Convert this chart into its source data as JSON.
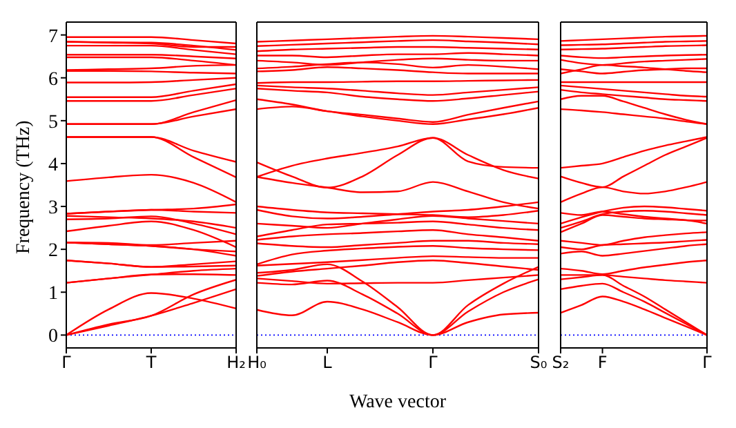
{
  "chart_data": [
    {
      "type": "line",
      "ylabel": "Frequency (THz)",
      "categories": [
        "Γ",
        null,
        "T",
        null,
        "H₂"
      ],
      "ylim": [
        -0.3,
        7.3
      ],
      "yticks": [
        0,
        1,
        2,
        3,
        4,
        5,
        6,
        7
      ],
      "ref_lines": [
        {
          "axis": "y",
          "value": 0,
          "color": "#0000ff",
          "line_style": "dotted"
        }
      ],
      "series": [
        {
          "color": "#ff0000",
          "values": [
            0,
            0.22,
            0.45,
            0.75,
            1.07
          ]
        },
        {
          "color": "#ff0000",
          "values": [
            0,
            0.25,
            0.45,
            0.95,
            1.29
          ]
        },
        {
          "color": "#ff0000",
          "values": [
            0,
            0.6,
            0.98,
            0.85,
            0.62
          ]
        },
        {
          "color": "#ff0000",
          "values": [
            1.22,
            1.32,
            1.41,
            1.42,
            1.4
          ]
        },
        {
          "color": "#ff0000",
          "values": [
            1.22,
            1.32,
            1.41,
            1.5,
            1.55
          ]
        },
        {
          "color": "#ff0000",
          "values": [
            1.74,
            1.67,
            1.59,
            1.6,
            1.62
          ]
        },
        {
          "color": "#ff0000",
          "values": [
            1.74,
            1.67,
            1.59,
            1.65,
            1.72
          ]
        },
        {
          "color": "#ff0000",
          "values": [
            2.16,
            2.12,
            2.08,
            2.0,
            1.85
          ]
        },
        {
          "color": "#ff0000",
          "values": [
            2.16,
            2.12,
            2.08,
            2.0,
            1.95
          ]
        },
        {
          "color": "#ff0000",
          "values": [
            2.16,
            2.15,
            2.1,
            2.15,
            2.2
          ]
        },
        {
          "color": "#ff0000",
          "values": [
            2.42,
            2.55,
            2.65,
            2.45,
            2.05
          ]
        },
        {
          "color": "#ff0000",
          "values": [
            2.7,
            2.72,
            2.77,
            2.6,
            2.35
          ]
        },
        {
          "color": "#ff0000",
          "values": [
            2.78,
            2.75,
            2.72,
            2.65,
            2.5
          ]
        },
        {
          "color": "#ff0000",
          "values": [
            2.83,
            2.88,
            2.92,
            2.88,
            2.85
          ]
        },
        {
          "color": "#ff0000",
          "values": [
            2.83,
            2.88,
            2.92,
            2.95,
            3.05
          ]
        },
        {
          "color": "#ff0000",
          "values": [
            3.59,
            3.68,
            3.74,
            3.55,
            3.1
          ]
        },
        {
          "color": "#ff0000",
          "values": [
            4.62,
            4.62,
            4.62,
            4.3,
            4.04
          ]
        },
        {
          "color": "#ff0000",
          "values": [
            4.62,
            4.62,
            4.62,
            4.15,
            3.68
          ]
        },
        {
          "color": "#ff0000",
          "values": [
            4.92,
            4.92,
            4.92,
            5.1,
            5.27
          ]
        },
        {
          "color": "#ff0000",
          "values": [
            4.92,
            4.92,
            4.92,
            5.2,
            5.48
          ]
        },
        {
          "color": "#ff0000",
          "values": [
            5.46,
            5.46,
            5.46,
            5.6,
            5.75
          ]
        },
        {
          "color": "#ff0000",
          "values": [
            5.55,
            5.55,
            5.55,
            5.7,
            5.85
          ]
        },
        {
          "color": "#ff0000",
          "values": [
            5.89,
            5.89,
            5.9,
            5.95,
            6.0
          ]
        },
        {
          "color": "#ff0000",
          "values": [
            6.16,
            6.16,
            6.15,
            6.12,
            6.1
          ]
        },
        {
          "color": "#ff0000",
          "values": [
            6.18,
            6.2,
            6.22,
            6.28,
            6.3
          ]
        },
        {
          "color": "#ff0000",
          "values": [
            6.48,
            6.48,
            6.48,
            6.4,
            6.3
          ]
        },
        {
          "color": "#ff0000",
          "values": [
            6.54,
            6.54,
            6.54,
            6.5,
            6.45
          ]
        },
        {
          "color": "#ff0000",
          "values": [
            6.75,
            6.75,
            6.75,
            6.65,
            6.55
          ]
        },
        {
          "color": "#ff0000",
          "values": [
            6.84,
            6.83,
            6.82,
            6.75,
            6.65
          ]
        },
        {
          "color": "#ff0000",
          "values": [
            6.84,
            6.82,
            6.8,
            6.72,
            6.72
          ]
        },
        {
          "color": "#ff0000",
          "values": [
            6.95,
            6.95,
            6.95,
            6.88,
            6.8
          ]
        }
      ]
    },
    {
      "type": "line",
      "xlabel": "Wave vector",
      "tick_labels": "x",
      "categories": [
        "H₀",
        null,
        "L",
        null,
        null,
        "Γ",
        null,
        null,
        "S₀"
      ],
      "ylim": [
        -0.3,
        7.3
      ],
      "yticks": [
        0,
        1,
        2,
        3,
        4,
        5,
        6,
        7
      ],
      "ref_lines": [
        {
          "axis": "y",
          "value": 0,
          "color": "#0000ff",
          "line_style": "dotted"
        }
      ],
      "series": [
        {
          "color": "#ff0000",
          "values": [
            0.59,
            0.46,
            0.78,
            0.6,
            0.3,
            0,
            0.3,
            0.48,
            0.52
          ]
        },
        {
          "color": "#ff0000",
          "values": [
            1.22,
            1.18,
            1.27,
            0.95,
            0.5,
            0,
            0.55,
            1.0,
            1.3
          ]
        },
        {
          "color": "#ff0000",
          "values": [
            1.45,
            1.52,
            1.65,
            1.25,
            0.65,
            0,
            0.7,
            1.2,
            1.59
          ]
        },
        {
          "color": "#ff0000",
          "values": [
            1.32,
            1.26,
            1.2,
            1.21,
            1.22,
            1.22,
            1.28,
            1.34,
            1.4
          ]
        },
        {
          "color": "#ff0000",
          "values": [
            1.38,
            1.48,
            1.55,
            1.62,
            1.7,
            1.74,
            1.68,
            1.6,
            1.52
          ]
        },
        {
          "color": "#ff0000",
          "values": [
            1.62,
            1.66,
            1.7,
            1.75,
            1.8,
            1.84,
            1.82,
            1.8,
            1.8
          ]
        },
        {
          "color": "#ff0000",
          "values": [
            1.65,
            1.88,
            1.97,
            2.02,
            2.06,
            2.08,
            2.03,
            2.0,
            1.98
          ]
        },
        {
          "color": "#ff0000",
          "values": [
            2.14,
            2.08,
            2.05,
            2.1,
            2.15,
            2.2,
            2.2,
            2.15,
            2.12
          ]
        },
        {
          "color": "#ff0000",
          "values": [
            2.22,
            2.3,
            2.35,
            2.38,
            2.42,
            2.45,
            2.35,
            2.28,
            2.2
          ]
        },
        {
          "color": "#ff0000",
          "values": [
            2.3,
            2.45,
            2.58,
            2.6,
            2.62,
            2.65,
            2.58,
            2.5,
            2.45
          ]
        },
        {
          "color": "#ff0000",
          "values": [
            2.6,
            2.55,
            2.5,
            2.6,
            2.7,
            2.78,
            2.72,
            2.66,
            2.6
          ]
        },
        {
          "color": "#ff0000",
          "values": [
            2.92,
            2.77,
            2.72,
            2.76,
            2.82,
            2.88,
            2.92,
            3.0,
            3.1
          ]
        },
        {
          "color": "#ff0000",
          "values": [
            3.0,
            2.92,
            2.86,
            2.84,
            2.82,
            2.8,
            2.75,
            2.8,
            2.9
          ]
        },
        {
          "color": "#ff0000",
          "values": [
            3.69,
            3.55,
            3.44,
            3.33,
            3.35,
            3.57,
            3.35,
            3.1,
            2.95
          ]
        },
        {
          "color": "#ff0000",
          "values": [
            4.03,
            3.7,
            3.44,
            3.7,
            4.2,
            4.6,
            4.2,
            3.85,
            3.65
          ]
        },
        {
          "color": "#ff0000",
          "values": [
            3.69,
            3.95,
            4.12,
            4.25,
            4.4,
            4.6,
            4.05,
            3.92,
            3.9
          ]
        },
        {
          "color": "#ff0000",
          "values": [
            5.27,
            5.33,
            5.22,
            5.1,
            5.0,
            4.92,
            5.03,
            5.15,
            5.3
          ]
        },
        {
          "color": "#ff0000",
          "values": [
            5.5,
            5.38,
            5.22,
            5.14,
            5.05,
            4.97,
            5.14,
            5.3,
            5.45
          ]
        },
        {
          "color": "#ff0000",
          "values": [
            5.75,
            5.7,
            5.66,
            5.56,
            5.5,
            5.46,
            5.52,
            5.6,
            5.68
          ]
        },
        {
          "color": "#ff0000",
          "values": [
            5.82,
            5.78,
            5.75,
            5.7,
            5.64,
            5.6,
            5.66,
            5.72,
            5.78
          ]
        },
        {
          "color": "#ff0000",
          "values": [
            5.88,
            5.9,
            5.9,
            5.91,
            5.92,
            5.92,
            5.93,
            5.94,
            5.95
          ]
        },
        {
          "color": "#ff0000",
          "values": [
            6.15,
            6.18,
            6.25,
            6.22,
            6.18,
            6.13,
            6.1,
            6.1,
            6.1
          ]
        },
        {
          "color": "#ff0000",
          "values": [
            6.22,
            6.26,
            6.32,
            6.36,
            6.32,
            6.24,
            6.3,
            6.26,
            6.2
          ]
        },
        {
          "color": "#ff0000",
          "values": [
            6.4,
            6.36,
            6.3,
            6.36,
            6.42,
            6.45,
            6.42,
            6.4,
            6.4
          ]
        },
        {
          "color": "#ff0000",
          "values": [
            6.52,
            6.52,
            6.48,
            6.52,
            6.55,
            6.55,
            6.58,
            6.55,
            6.52
          ]
        },
        {
          "color": "#ff0000",
          "values": [
            6.62,
            6.66,
            6.68,
            6.7,
            6.72,
            6.72,
            6.7,
            6.68,
            6.66
          ]
        },
        {
          "color": "#ff0000",
          "values": [
            6.74,
            6.77,
            6.8,
            6.83,
            6.86,
            6.88,
            6.85,
            6.82,
            6.78
          ]
        },
        {
          "color": "#ff0000",
          "values": [
            6.84,
            6.87,
            6.9,
            6.93,
            6.96,
            6.98,
            6.96,
            6.93,
            6.9
          ]
        }
      ]
    },
    {
      "type": "line",
      "tick_labels": "x",
      "categories": [
        "S₂",
        null,
        "F",
        null,
        null,
        null,
        null,
        "Γ"
      ],
      "ylim": [
        -0.3,
        7.3
      ],
      "yticks": [
        0,
        1,
        2,
        3,
        4,
        5,
        6,
        7
      ],
      "ref_lines": [
        {
          "axis": "y",
          "value": 0,
          "color": "#0000ff",
          "line_style": "dotted"
        }
      ],
      "series": [
        {
          "color": "#ff0000",
          "values": [
            0.52,
            0.7,
            0.9,
            0.78,
            0.6,
            0.4,
            0.2,
            0
          ]
        },
        {
          "color": "#ff0000",
          "values": [
            1.07,
            1.15,
            1.2,
            1.0,
            0.78,
            0.52,
            0.26,
            0
          ]
        },
        {
          "color": "#ff0000",
          "values": [
            1.4,
            1.4,
            1.4,
            1.15,
            0.9,
            0.6,
            0.3,
            0
          ]
        },
        {
          "color": "#ff0000",
          "values": [
            1.3,
            1.35,
            1.4,
            1.36,
            1.32,
            1.28,
            1.25,
            1.22
          ]
        },
        {
          "color": "#ff0000",
          "values": [
            1.55,
            1.5,
            1.42,
            1.5,
            1.58,
            1.64,
            1.7,
            1.74
          ]
        },
        {
          "color": "#ff0000",
          "values": [
            1.9,
            1.95,
            1.85,
            1.9,
            1.96,
            2.02,
            2.08,
            2.12
          ]
        },
        {
          "color": "#ff0000",
          "values": [
            2.05,
            2.0,
            2.1,
            2.12,
            2.14,
            2.16,
            2.19,
            2.22
          ]
        },
        {
          "color": "#ff0000",
          "values": [
            2.2,
            2.15,
            2.1,
            2.2,
            2.28,
            2.33,
            2.37,
            2.4
          ]
        },
        {
          "color": "#ff0000",
          "values": [
            2.4,
            2.6,
            2.8,
            2.76,
            2.72,
            2.7,
            2.68,
            2.67
          ]
        },
        {
          "color": "#ff0000",
          "values": [
            2.5,
            2.65,
            2.82,
            2.88,
            2.9,
            2.88,
            2.84,
            2.8
          ]
        },
        {
          "color": "#ff0000",
          "values": [
            2.6,
            2.75,
            2.88,
            2.97,
            3.0,
            2.98,
            2.94,
            2.9
          ]
        },
        {
          "color": "#ff0000",
          "values": [
            2.85,
            2.8,
            2.88,
            2.82,
            2.76,
            2.72,
            2.68,
            2.6
          ]
        },
        {
          "color": "#ff0000",
          "values": [
            3.1,
            3.3,
            3.45,
            3.35,
            3.3,
            3.35,
            3.45,
            3.57
          ]
        },
        {
          "color": "#ff0000",
          "values": [
            3.7,
            3.55,
            3.45,
            3.7,
            3.95,
            4.2,
            4.4,
            4.6
          ]
        },
        {
          "color": "#ff0000",
          "values": [
            3.9,
            3.95,
            4.0,
            4.15,
            4.3,
            4.42,
            4.52,
            4.62
          ]
        },
        {
          "color": "#ff0000",
          "values": [
            5.27,
            5.24,
            5.2,
            5.15,
            5.1,
            5.05,
            4.98,
            4.92
          ]
        },
        {
          "color": "#ff0000",
          "values": [
            5.5,
            5.58,
            5.58,
            5.45,
            5.3,
            5.15,
            5.02,
            4.92
          ]
        },
        {
          "color": "#ff0000",
          "values": [
            5.72,
            5.66,
            5.62,
            5.58,
            5.54,
            5.5,
            5.48,
            5.46
          ]
        },
        {
          "color": "#ff0000",
          "values": [
            5.82,
            5.78,
            5.74,
            5.7,
            5.66,
            5.62,
            5.58,
            5.56
          ]
        },
        {
          "color": "#ff0000",
          "values": [
            5.9,
            5.9,
            5.9,
            5.9,
            5.9,
            5.9,
            5.9,
            5.9
          ]
        },
        {
          "color": "#ff0000",
          "values": [
            6.1,
            6.2,
            6.3,
            6.27,
            6.24,
            6.2,
            6.16,
            6.13
          ]
        },
        {
          "color": "#ff0000",
          "values": [
            6.2,
            6.15,
            6.1,
            6.14,
            6.18,
            6.2,
            6.22,
            6.22
          ]
        },
        {
          "color": "#ff0000",
          "values": [
            6.42,
            6.34,
            6.3,
            6.34,
            6.38,
            6.4,
            6.42,
            6.44
          ]
        },
        {
          "color": "#ff0000",
          "values": [
            6.52,
            6.48,
            6.46,
            6.48,
            6.5,
            6.52,
            6.53,
            6.54
          ]
        },
        {
          "color": "#ff0000",
          "values": [
            6.66,
            6.67,
            6.68,
            6.7,
            6.72,
            6.74,
            6.75,
            6.76
          ]
        },
        {
          "color": "#ff0000",
          "values": [
            6.76,
            6.77,
            6.78,
            6.8,
            6.82,
            6.84,
            6.85,
            6.86
          ]
        },
        {
          "color": "#ff0000",
          "values": [
            6.86,
            6.88,
            6.9,
            6.92,
            6.94,
            6.96,
            6.97,
            6.98
          ]
        }
      ]
    }
  ]
}
